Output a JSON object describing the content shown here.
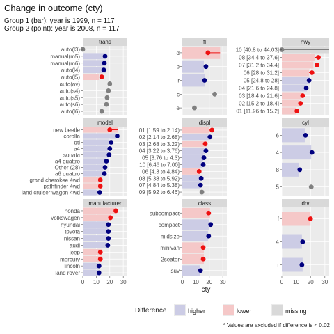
{
  "title": "Change in outcome (cty)",
  "subtitle_lines": [
    "Group 1 (bar): year is 1999, n = 117",
    "Group 2 (point): year is 2008, n = 117"
  ],
  "x_axis_title": "cty",
  "x_ticks": [
    0,
    10,
    20,
    30
  ],
  "caption": "* Values are excluded if difference is < 0.02",
  "legend": {
    "title": "Difference",
    "items": [
      {
        "label": "higher",
        "color": "#cccce5"
      },
      {
        "label": "lower",
        "color": "#f5c8c8"
      },
      {
        "label": "missing",
        "color": "#d9d9d9"
      }
    ]
  },
  "colors": {
    "higher_fill": "#cccce5",
    "lower_fill": "#f5c8c8",
    "missing_fill": "#d9d9d9",
    "higher_point": "#00007f",
    "lower_point": "#ee1111",
    "missing_point": "#808080",
    "strip": "#d9d9d9",
    "panel": "#ebebeb"
  },
  "chart_data": {
    "type": "bar",
    "description_of_encoding": "horizontal bars = Group 1 (1999) mean cty; points = Group 2 (2008) mean cty; color = direction of difference",
    "x_range": [
      0,
      33
    ],
    "panels": [
      {
        "name": "trans",
        "rows": [
          {
            "category": "auto(l3)",
            "bar": null,
            "point": 0,
            "status": "missing"
          },
          {
            "category": "manual(m5)",
            "bar": 17,
            "point": 16.5,
            "status": "higher"
          },
          {
            "category": "manual(m6)",
            "bar": 17,
            "point": 16,
            "status": "higher"
          },
          {
            "category": "auto(l4)",
            "bar": 17,
            "point": 15.5,
            "status": "higher"
          },
          {
            "category": "auto(l5)",
            "bar": 12,
            "point": 14,
            "status": "lower"
          },
          {
            "category": "auto(av)",
            "bar": null,
            "point": 20,
            "status": "missing"
          },
          {
            "category": "auto(s4)",
            "bar": null,
            "point": 19,
            "status": "missing"
          },
          {
            "category": "auto(s5)",
            "bar": null,
            "point": 18,
            "status": "missing"
          },
          {
            "category": "auto(s6)",
            "bar": null,
            "point": 17.5,
            "status": "missing"
          },
          {
            "category": "auto(l6)",
            "bar": null,
            "point": 14,
            "status": "missing"
          }
        ]
      },
      {
        "name": "fl",
        "rows": [
          {
            "category": "d",
            "bar": 28,
            "point": 19,
            "status": "lower"
          },
          {
            "category": "p",
            "bar": 16,
            "point": 17.5,
            "status": "higher"
          },
          {
            "category": "r",
            "bar": 16.5,
            "point": 16.5,
            "status": "higher"
          },
          {
            "category": "c",
            "bar": null,
            "point": 24,
            "status": "missing"
          },
          {
            "category": "e",
            "bar": null,
            "point": 9,
            "status": "missing"
          }
        ]
      },
      {
        "name": "hwy",
        "rows": [
          {
            "category": "10 [40.8 to 44.03]",
            "bar": 33,
            "point": 0,
            "status": "missing"
          },
          {
            "category": "08 [34.4 to 37.6]",
            "bar": 23,
            "point": 25.5,
            "status": "lower"
          },
          {
            "category": "07 [31.2 to 34.4]",
            "bar": 22,
            "point": 24.5,
            "status": "lower"
          },
          {
            "category": "06 [28 to 31.2]",
            "bar": 19,
            "point": 21,
            "status": "lower"
          },
          {
            "category": "05 [24.8 to 28]",
            "bar": 19.5,
            "point": 19,
            "status": "higher"
          },
          {
            "category": "04 [21.6 to 24.8]",
            "bar": 17.5,
            "point": 17,
            "status": "higher"
          },
          {
            "category": "03 [18.4 to 21.6]",
            "bar": 13.5,
            "point": 14.5,
            "status": "lower"
          },
          {
            "category": "02 [15.2 to 18.4]",
            "bar": 12,
            "point": 13,
            "status": "lower"
          },
          {
            "category": "01 [11.96 to 15.2]",
            "bar": 10,
            "point": 10.5,
            "status": "lower"
          }
        ]
      },
      {
        "name": "model",
        "rows": [
          {
            "category": "new beetle",
            "bar": 26,
            "point": 20,
            "status": "lower"
          },
          {
            "category": "corolla",
            "bar": 24.5,
            "point": 25.5,
            "status": "higher"
          },
          {
            "category": "gti",
            "bar": 20,
            "point": 21,
            "status": "higher"
          },
          {
            "category": "a4",
            "bar": 18.5,
            "point": 20,
            "status": "higher"
          },
          {
            "category": "sonata",
            "bar": 19,
            "point": 19.5,
            "status": "higher"
          },
          {
            "category": "a4 quattro",
            "bar": 17,
            "point": 17.5,
            "status": "higher"
          },
          {
            "category": "Other (28)",
            "bar": 16,
            "point": 16.5,
            "status": "higher"
          },
          {
            "category": "a6 quattro",
            "bar": 15,
            "point": 16,
            "status": "higher"
          },
          {
            "category": "grand cherokee 4wd",
            "bar": 14,
            "point": 13,
            "status": "lower"
          },
          {
            "category": "pathfinder 4wd",
            "bar": 14,
            "point": 13,
            "status": "lower"
          },
          {
            "category": "land cruiser wagon 4wd",
            "bar": 11,
            "point": 12.5,
            "status": "higher"
          }
        ]
      },
      {
        "name": "displ",
        "rows": [
          {
            "category": "01 [1.59 to 2.14)",
            "bar": 20,
            "point": 22,
            "status": "lower"
          },
          {
            "category": "02 [2.14 to 2.68)",
            "bar": 19.5,
            "point": 20.5,
            "status": "higher"
          },
          {
            "category": "03 [2.68 to 3.22)",
            "bar": 18,
            "point": 17,
            "status": "lower"
          },
          {
            "category": "04 [3.22 to 3.76)",
            "bar": 17,
            "point": 17.5,
            "status": "higher"
          },
          {
            "category": "05 [3.76 to 4.3)",
            "bar": 15.5,
            "point": 16,
            "status": "higher"
          },
          {
            "category": "10 [6.46 to 7.00]",
            "bar": 15,
            "point": 15.5,
            "status": "higher"
          },
          {
            "category": "06 [4.3 to 4.84)",
            "bar": 13,
            "point": 12.5,
            "status": "lower"
          },
          {
            "category": "08 [5.38 to 5.92)",
            "bar": 13.5,
            "point": 14,
            "status": "higher"
          },
          {
            "category": "07 [4.84 to 5.38)",
            "bar": 13,
            "point": 13.5,
            "status": "higher"
          },
          {
            "category": "09 [5.92 to 6.46)",
            "bar": null,
            "point": 14.5,
            "status": "missing"
          }
        ]
      },
      {
        "name": "cyl",
        "rows": [
          {
            "category": "6",
            "bar": 16,
            "point": 16.5,
            "status": "higher"
          },
          {
            "category": "4",
            "bar": 20.5,
            "point": 21,
            "status": "higher"
          },
          {
            "category": "8",
            "bar": 12,
            "point": 12.5,
            "status": "higher"
          },
          {
            "category": "5",
            "bar": null,
            "point": 20.5,
            "status": "missing"
          }
        ]
      },
      {
        "name": "manufacturer",
        "rows": [
          {
            "category": "honda",
            "bar": 24.5,
            "point": 24.5,
            "status": "lower"
          },
          {
            "category": "volkswagen",
            "bar": 21,
            "point": 20.5,
            "status": "lower"
          },
          {
            "category": "hyundai",
            "bar": 18.5,
            "point": 19,
            "status": "higher"
          },
          {
            "category": "toyota",
            "bar": 18.5,
            "point": 19,
            "status": "higher"
          },
          {
            "category": "nissan",
            "bar": 18,
            "point": 19,
            "status": "higher"
          },
          {
            "category": "audi",
            "bar": 17.5,
            "point": 18.5,
            "status": "higher"
          },
          {
            "category": "jeep",
            "bar": 14,
            "point": 13,
            "status": "lower"
          },
          {
            "category": "mercury",
            "bar": 14,
            "point": 13,
            "status": "lower"
          },
          {
            "category": "lincoln",
            "bar": 11.5,
            "point": 12,
            "status": "higher"
          },
          {
            "category": "land rover",
            "bar": 11.5,
            "point": 12,
            "status": "higher"
          }
        ]
      },
      {
        "name": "class",
        "rows": [
          {
            "category": "subcompact",
            "bar": 20.5,
            "point": 19.5,
            "status": "lower"
          },
          {
            "category": "compact",
            "bar": 20,
            "point": 21,
            "status": "higher"
          },
          {
            "category": "midsize",
            "bar": 19,
            "point": 19.5,
            "status": "higher"
          },
          {
            "category": "minivan",
            "bar": 16,
            "point": 15.5,
            "status": "lower"
          },
          {
            "category": "2seater",
            "bar": 16,
            "point": 15.5,
            "status": "lower"
          },
          {
            "category": "suv",
            "bar": 13,
            "point": 13.5,
            "status": "higher"
          }
        ]
      },
      {
        "name": "drv",
        "rows": [
          {
            "category": "f",
            "bar": 20,
            "point": 20,
            "status": "lower"
          },
          {
            "category": "4",
            "bar": 14,
            "point": 14.5,
            "status": "higher"
          },
          {
            "category": "r",
            "bar": 14.5,
            "point": 14,
            "status": "higher"
          }
        ]
      }
    ]
  }
}
